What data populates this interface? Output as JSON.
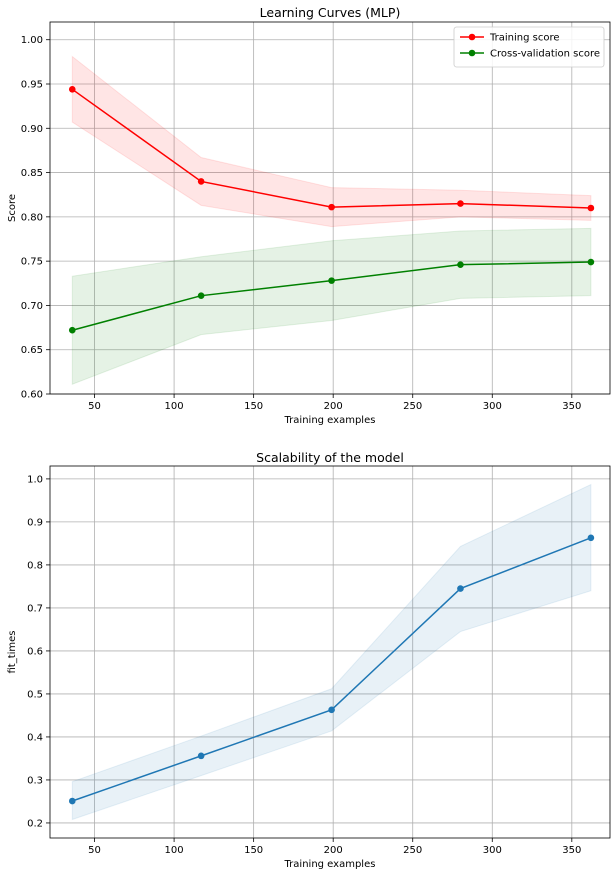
{
  "chart_data": [
    {
      "type": "line",
      "title": "Learning Curves (MLP)",
      "xlabel": "Training examples",
      "ylabel": "Score",
      "xlim": [
        22,
        374
      ],
      "ylim": [
        0.6,
        1.02
      ],
      "xticks": [
        50,
        100,
        150,
        200,
        250,
        300,
        350
      ],
      "xtick_labels": [
        "50",
        "100",
        "150",
        "200",
        "250",
        "300",
        "350"
      ],
      "yticks": [
        0.6,
        0.65,
        0.7,
        0.75,
        0.8,
        0.85,
        0.9,
        0.95,
        1.0
      ],
      "ytick_labels": [
        "0.60",
        "0.65",
        "0.70",
        "0.75",
        "0.80",
        "0.85",
        "0.90",
        "0.95",
        "1.00"
      ],
      "grid": true,
      "legend_position": "top-right",
      "x": [
        36,
        117,
        199,
        280,
        362
      ],
      "series": [
        {
          "name": "Training score",
          "color": "#ff0000",
          "values": [
            0.944,
            0.84,
            0.811,
            0.815,
            0.81
          ],
          "upper": [
            0.981,
            0.867,
            0.833,
            0.83,
            0.824
          ],
          "lower": [
            0.907,
            0.813,
            0.789,
            0.8,
            0.796
          ]
        },
        {
          "name": "Cross-validation score",
          "color": "#008000",
          "values": [
            0.672,
            0.711,
            0.728,
            0.746,
            0.749
          ],
          "upper": [
            0.733,
            0.755,
            0.773,
            0.784,
            0.787
          ],
          "lower": [
            0.611,
            0.667,
            0.683,
            0.708,
            0.711
          ]
        }
      ]
    },
    {
      "type": "line",
      "title": "Scalability of the model",
      "xlabel": "Training examples",
      "ylabel": "fit_times",
      "xlim": [
        22,
        374
      ],
      "ylim": [
        0.165,
        1.03
      ],
      "xticks": [
        50,
        100,
        150,
        200,
        250,
        300,
        350
      ],
      "xtick_labels": [
        "50",
        "100",
        "150",
        "200",
        "250",
        "300",
        "350"
      ],
      "yticks": [
        0.2,
        0.3,
        0.4,
        0.5,
        0.6,
        0.7,
        0.8,
        0.9,
        1.0
      ],
      "ytick_labels": [
        "0.2",
        "0.3",
        "0.4",
        "0.5",
        "0.6",
        "0.7",
        "0.8",
        "0.9",
        "1.0"
      ],
      "grid": true,
      "x": [
        36,
        117,
        199,
        280,
        362
      ],
      "series": [
        {
          "color": "#1f77b4",
          "values": [
            0.251,
            0.356,
            0.463,
            0.745,
            0.863
          ],
          "upper": [
            0.296,
            0.402,
            0.512,
            0.843,
            0.987
          ],
          "lower": [
            0.208,
            0.31,
            0.414,
            0.645,
            0.74
          ]
        }
      ]
    }
  ]
}
